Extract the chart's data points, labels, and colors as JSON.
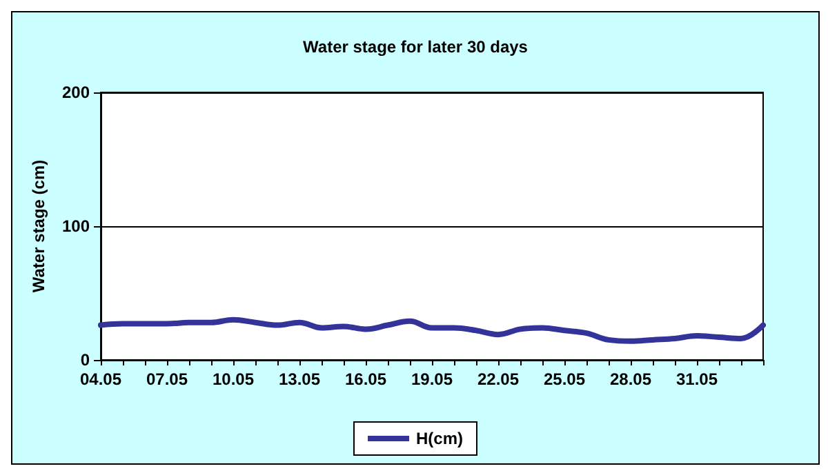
{
  "chart_data": {
    "type": "line",
    "title": "Water stage for later 30 days",
    "ylabel": "Water stage (cm)",
    "categories": [
      "04.05",
      null,
      null,
      "07.05",
      null,
      null,
      "10.05",
      null,
      null,
      "13.05",
      null,
      null,
      "16.05",
      null,
      null,
      "19.05",
      null,
      null,
      "22.05",
      null,
      null,
      "25.05",
      null,
      null,
      "28.05",
      null,
      null,
      "31.05",
      null,
      null,
      null
    ],
    "series": [
      {
        "name": "H(cm)",
        "color": "#333399",
        "values": [
          26,
          27,
          27,
          27,
          28,
          28,
          30,
          28,
          26,
          28,
          24,
          25,
          23,
          26,
          29,
          24,
          24,
          22,
          19,
          23,
          24,
          22,
          20,
          15,
          14,
          15,
          16,
          18,
          17,
          16,
          26
        ]
      }
    ],
    "ylim": [
      0,
      200
    ],
    "yticks": [
      0,
      100,
      200
    ],
    "grid": "y",
    "legend": "bottom",
    "marker": "none",
    "line_style": "solid"
  }
}
